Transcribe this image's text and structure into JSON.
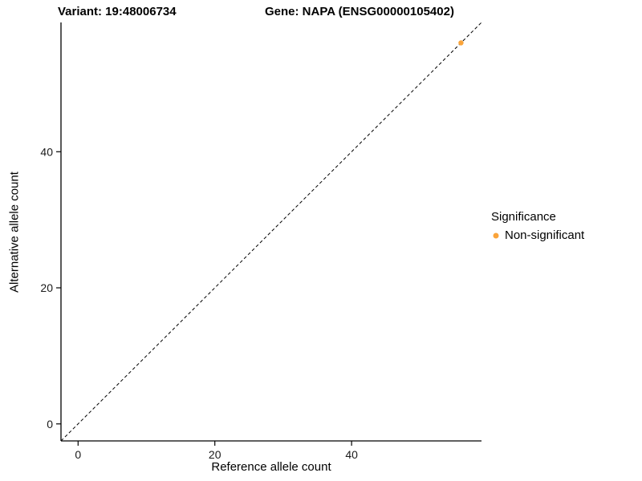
{
  "chart_data": {
    "type": "scatter",
    "title_left": "Variant: 19:48006734",
    "title_right": "Gene: NAPA (ENSG00000105402)",
    "xlabel": "Reference allele count",
    "ylabel": "Alternative allele count",
    "xlim": [
      -2.5,
      59
    ],
    "ylim": [
      -2.5,
      59
    ],
    "xticks": [
      0,
      20,
      40
    ],
    "yticks": [
      0,
      20,
      40
    ],
    "grid": false,
    "reference_line": {
      "type": "identity",
      "from": [
        -2.5,
        -2.5
      ],
      "to": [
        59,
        59
      ],
      "style": "dashed",
      "color": "#000000"
    },
    "series": [
      {
        "name": "Non-significant",
        "color": "#FAA43A",
        "points": [
          [
            56,
            56
          ]
        ]
      }
    ],
    "legend": {
      "position": "right",
      "title": "Significance",
      "entries": [
        {
          "label": "Non-significant",
          "color": "#FAA43A"
        }
      ]
    }
  }
}
